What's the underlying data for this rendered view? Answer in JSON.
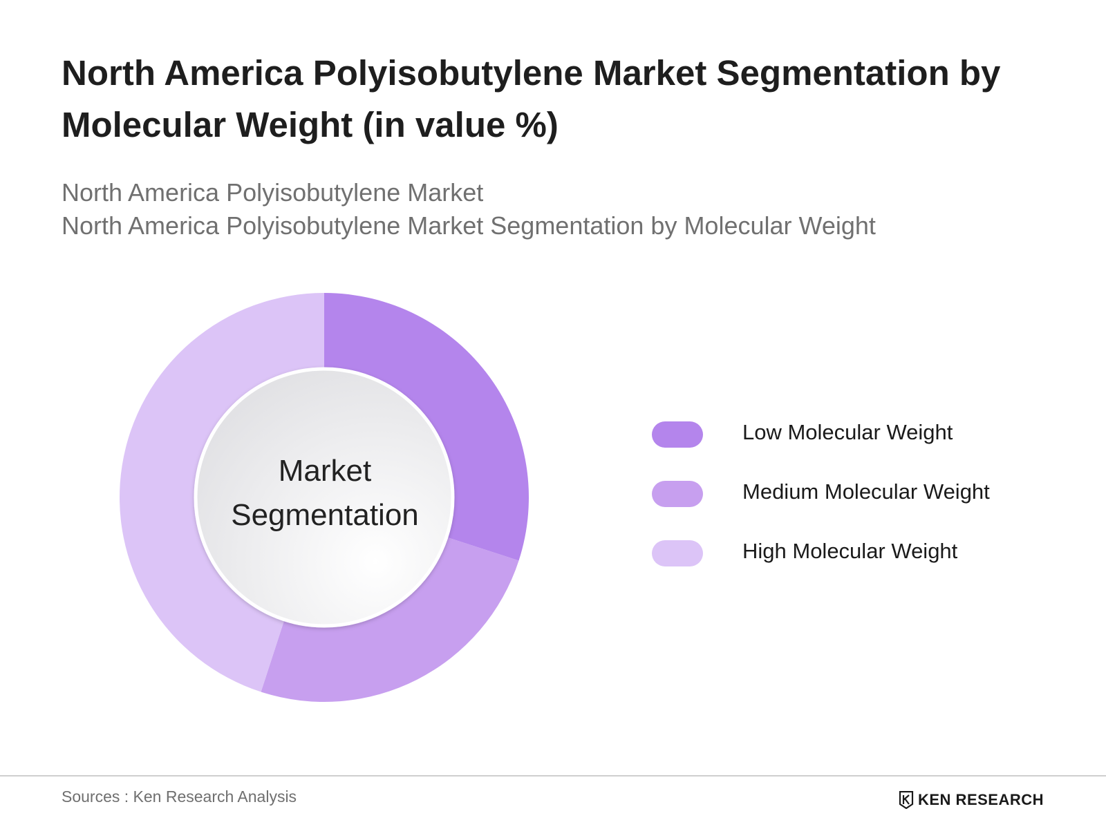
{
  "title": "North America Polyisobutylene Market Segmentation by Molecular Weight (in value %)",
  "subtitle_line1": "North America Polyisobutylene Market",
  "subtitle_line2": "North America Polyisobutylene Market Segmentation by Molecular Weight",
  "center_label": {
    "line1": "Market",
    "line2": "Segmentation"
  },
  "source": "Sources : Ken Research Analysis",
  "brand": {
    "text": "KEN RESEARCH",
    "icon": "ken-research-logo-icon"
  },
  "chart_data": {
    "type": "pie",
    "style": "donut",
    "legend_position": "right",
    "categories": [
      "Low Molecular Weight",
      "Medium Molecular Weight",
      "High Molecular Weight"
    ],
    "values": [
      30,
      25,
      45
    ],
    "colors": [
      "#b485ec",
      "#c79fef",
      "#dcc4f7"
    ]
  }
}
